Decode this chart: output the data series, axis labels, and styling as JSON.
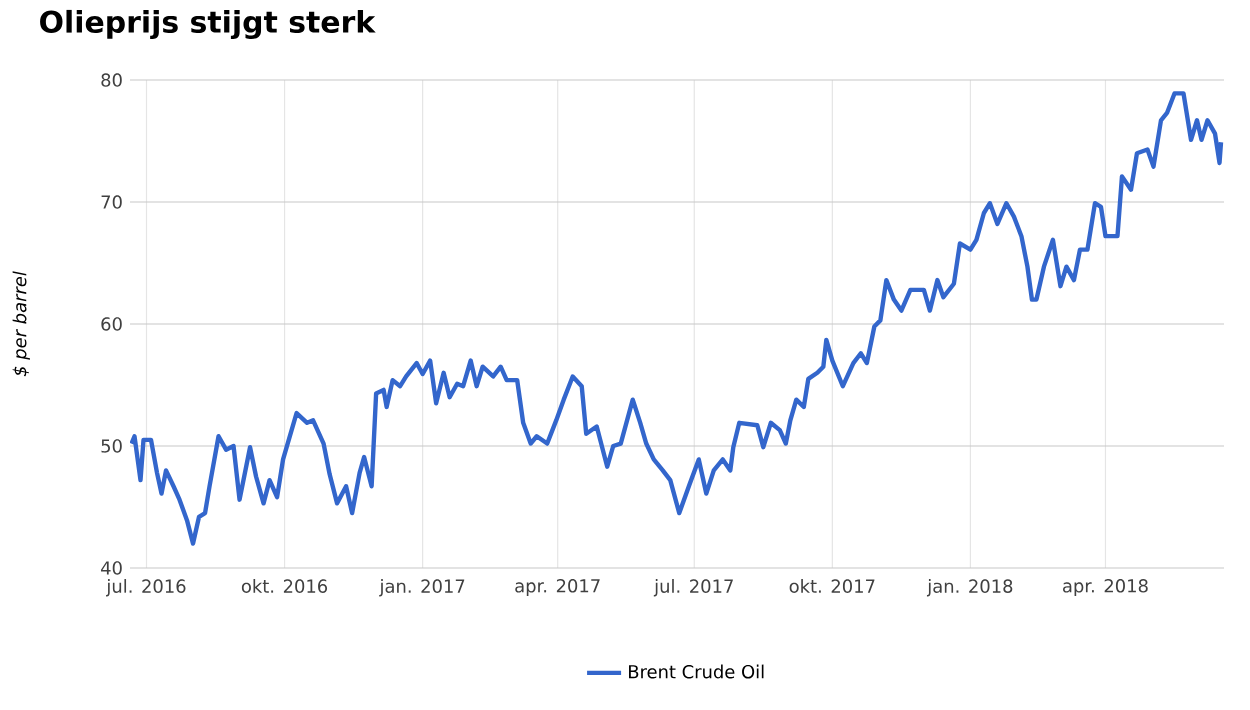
{
  "chart_data": {
    "type": "line",
    "title": "Olieprijs stijgt sterk",
    "ylabel": "$ per barrel",
    "xlim": [
      "2016-06-20",
      "2018-06-19"
    ],
    "ylim": [
      40,
      80
    ],
    "yticks": [
      40,
      50,
      60,
      70,
      80
    ],
    "xticks": [
      {
        "value": "2016-07-01",
        "label": "jul. 2016"
      },
      {
        "value": "2016-10-01",
        "label": "okt. 2016"
      },
      {
        "value": "2017-01-01",
        "label": "jan. 2017"
      },
      {
        "value": "2017-04-01",
        "label": "apr. 2017"
      },
      {
        "value": "2017-07-01",
        "label": "jul. 2017"
      },
      {
        "value": "2017-10-01",
        "label": "okt. 2017"
      },
      {
        "value": "2018-01-01",
        "label": "jan. 2018"
      },
      {
        "value": "2018-04-01",
        "label": "apr. 2018"
      }
    ],
    "grid": true,
    "legend": "bottom",
    "marker": "none",
    "line_style": "solid",
    "x": [
      "2016-06-21",
      "2016-06-23",
      "2016-06-27",
      "2016-06-29",
      "2016-07-04",
      "2016-07-08",
      "2016-07-11",
      "2016-07-14",
      "2016-07-19",
      "2016-07-23",
      "2016-07-28",
      "2016-08-01",
      "2016-08-05",
      "2016-08-09",
      "2016-08-12",
      "2016-08-18",
      "2016-08-23",
      "2016-08-28",
      "2016-09-01",
      "2016-09-08",
      "2016-09-12",
      "2016-09-17",
      "2016-09-21",
      "2016-09-26",
      "2016-09-30",
      "2016-10-09",
      "2016-10-16",
      "2016-10-20",
      "2016-10-27",
      "2016-10-31",
      "2016-11-05",
      "2016-11-11",
      "2016-11-15",
      "2016-11-20",
      "2016-11-23",
      "2016-11-28",
      "2016-12-01",
      "2016-12-06",
      "2016-12-08",
      "2016-12-12",
      "2016-12-17",
      "2016-12-21",
      "2016-12-28",
      "2017-01-01",
      "2017-01-06",
      "2017-01-10",
      "2017-01-15",
      "2017-01-19",
      "2017-01-24",
      "2017-01-28",
      "2017-02-02",
      "2017-02-06",
      "2017-02-10",
      "2017-02-17",
      "2017-02-22",
      "2017-02-26",
      "2017-03-05",
      "2017-03-09",
      "2017-03-14",
      "2017-03-18",
      "2017-03-25",
      "2017-03-31",
      "2017-04-05",
      "2017-04-11",
      "2017-04-17",
      "2017-04-20",
      "2017-04-27",
      "2017-05-04",
      "2017-05-08",
      "2017-05-13",
      "2017-05-21",
      "2017-05-26",
      "2017-05-30",
      "2017-06-04",
      "2017-06-10",
      "2017-06-15",
      "2017-06-21",
      "2017-06-28",
      "2017-07-04",
      "2017-07-09",
      "2017-07-14",
      "2017-07-20",
      "2017-07-25",
      "2017-07-27",
      "2017-07-31",
      "2017-08-12",
      "2017-08-16",
      "2017-08-21",
      "2017-08-27",
      "2017-08-31",
      "2017-09-03",
      "2017-09-07",
      "2017-09-12",
      "2017-09-15",
      "2017-09-21",
      "2017-09-25",
      "2017-09-27",
      "2017-10-01",
      "2017-10-08",
      "2017-10-15",
      "2017-10-20",
      "2017-10-24",
      "2017-10-29",
      "2017-11-02",
      "2017-11-06",
      "2017-11-11",
      "2017-11-16",
      "2017-11-22",
      "2017-12-01",
      "2017-12-05",
      "2017-12-10",
      "2017-12-14",
      "2017-12-21",
      "2017-12-25",
      "2018-01-01",
      "2018-01-05",
      "2018-01-10",
      "2018-01-14",
      "2018-01-19",
      "2018-01-25",
      "2018-01-30",
      "2018-02-04",
      "2018-02-08",
      "2018-02-11",
      "2018-02-14",
      "2018-02-19",
      "2018-02-25",
      "2018-03-02",
      "2018-03-06",
      "2018-03-11",
      "2018-03-15",
      "2018-03-20",
      "2018-03-25",
      "2018-03-29",
      "2018-04-01",
      "2018-04-09",
      "2018-04-12",
      "2018-04-18",
      "2018-04-22",
      "2018-04-29",
      "2018-05-03",
      "2018-05-08",
      "2018-05-12",
      "2018-05-17",
      "2018-05-23",
      "2018-05-28",
      "2018-06-01",
      "2018-06-04",
      "2018-06-08",
      "2018-06-13",
      "2018-06-16",
      "2018-06-17"
    ],
    "series": [
      {
        "name": "Brent Crude Oil",
        "color": "#3366cc",
        "values": [
          50.2,
          50.8,
          47.2,
          50.5,
          50.5,
          47.8,
          46.1,
          48.0,
          46.7,
          45.6,
          43.9,
          42.0,
          44.2,
          44.5,
          46.7,
          50.8,
          49.7,
          50.0,
          45.6,
          49.9,
          47.5,
          45.3,
          47.2,
          45.8,
          48.9,
          52.7,
          51.9,
          52.1,
          50.2,
          47.7,
          45.3,
          46.7,
          44.5,
          47.8,
          49.1,
          46.7,
          54.3,
          54.6,
          53.2,
          55.4,
          54.9,
          55.7,
          56.8,
          55.9,
          57.0,
          53.5,
          56.0,
          54.0,
          55.1,
          54.9,
          57.0,
          54.9,
          56.5,
          55.7,
          56.5,
          55.4,
          55.4,
          51.9,
          50.2,
          50.8,
          50.2,
          52.1,
          53.8,
          55.7,
          54.9,
          51.0,
          51.6,
          48.3,
          50.0,
          50.2,
          53.8,
          51.9,
          50.2,
          48.9,
          48.0,
          47.2,
          44.5,
          46.9,
          48.9,
          46.1,
          48.0,
          48.9,
          48.0,
          49.9,
          51.9,
          51.7,
          49.9,
          51.9,
          51.3,
          50.2,
          52.1,
          53.8,
          53.2,
          55.5,
          56.0,
          56.5,
          58.7,
          57.0,
          54.9,
          56.8,
          57.6,
          56.8,
          59.8,
          60.3,
          63.6,
          62.0,
          61.1,
          62.8,
          62.8,
          61.1,
          63.6,
          62.2,
          63.3,
          66.6,
          66.1,
          66.9,
          69.1,
          69.9,
          68.2,
          69.9,
          68.8,
          67.2,
          64.7,
          62.0,
          62.0,
          64.7,
          66.9,
          63.1,
          64.7,
          63.6,
          66.1,
          66.1,
          69.9,
          69.6,
          67.2,
          67.2,
          72.1,
          71.0,
          74.0,
          74.3,
          72.9,
          76.7,
          77.3,
          78.9,
          78.9,
          75.1,
          76.7,
          75.1,
          76.7,
          75.6,
          73.2,
          74.9
        ]
      }
    ]
  }
}
